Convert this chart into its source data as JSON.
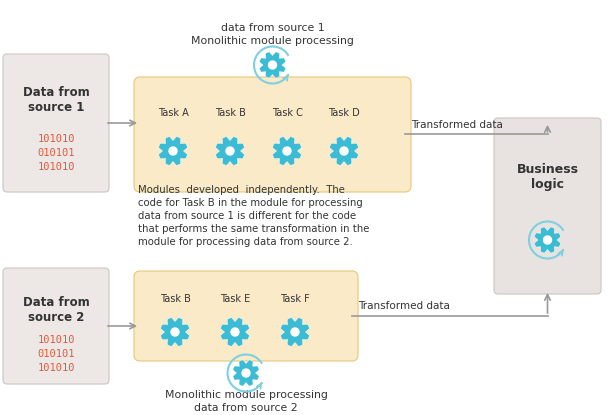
{
  "bg_color": "#ffffff",
  "source_box_color": "#ede8e5",
  "module_box_color": "#faeac8",
  "business_box_color": "#e8e3e0",
  "arrow_color": "#999999",
  "gear_fill_color": "#3bbcd4",
  "gear_ring_color": "#7ecfe0",
  "text_color": "#333333",
  "red_text_color": "#e05a3a",
  "source1_title": "Data from\nsource 1",
  "source1_data": "101010\n010101\n101010",
  "source2_title": "Data from\nsource 2",
  "source2_data": "101010\n010101\n101010",
  "module1_label_top": "Monolithic module processing",
  "module1_label_bot": "data from source 1",
  "module2_label_top": "Monolithic module processing",
  "module2_label_bot": "data from source 2",
  "module1_tasks": [
    "Task A",
    "Task B",
    "Task C",
    "Task D"
  ],
  "module2_tasks": [
    "Task B",
    "Task E",
    "Task F"
  ],
  "business_label": "Business\nlogic",
  "transformed_data": "Transformed data",
  "middle_text_lines": [
    "Modules  developed  independently.  The",
    "code for Task B in the module for processing",
    "data from source 1 is different for the code",
    "that performs the same transformation in the",
    "module for processing data from source 2."
  ],
  "figw": 6.07,
  "figh": 4.15,
  "dpi": 100
}
